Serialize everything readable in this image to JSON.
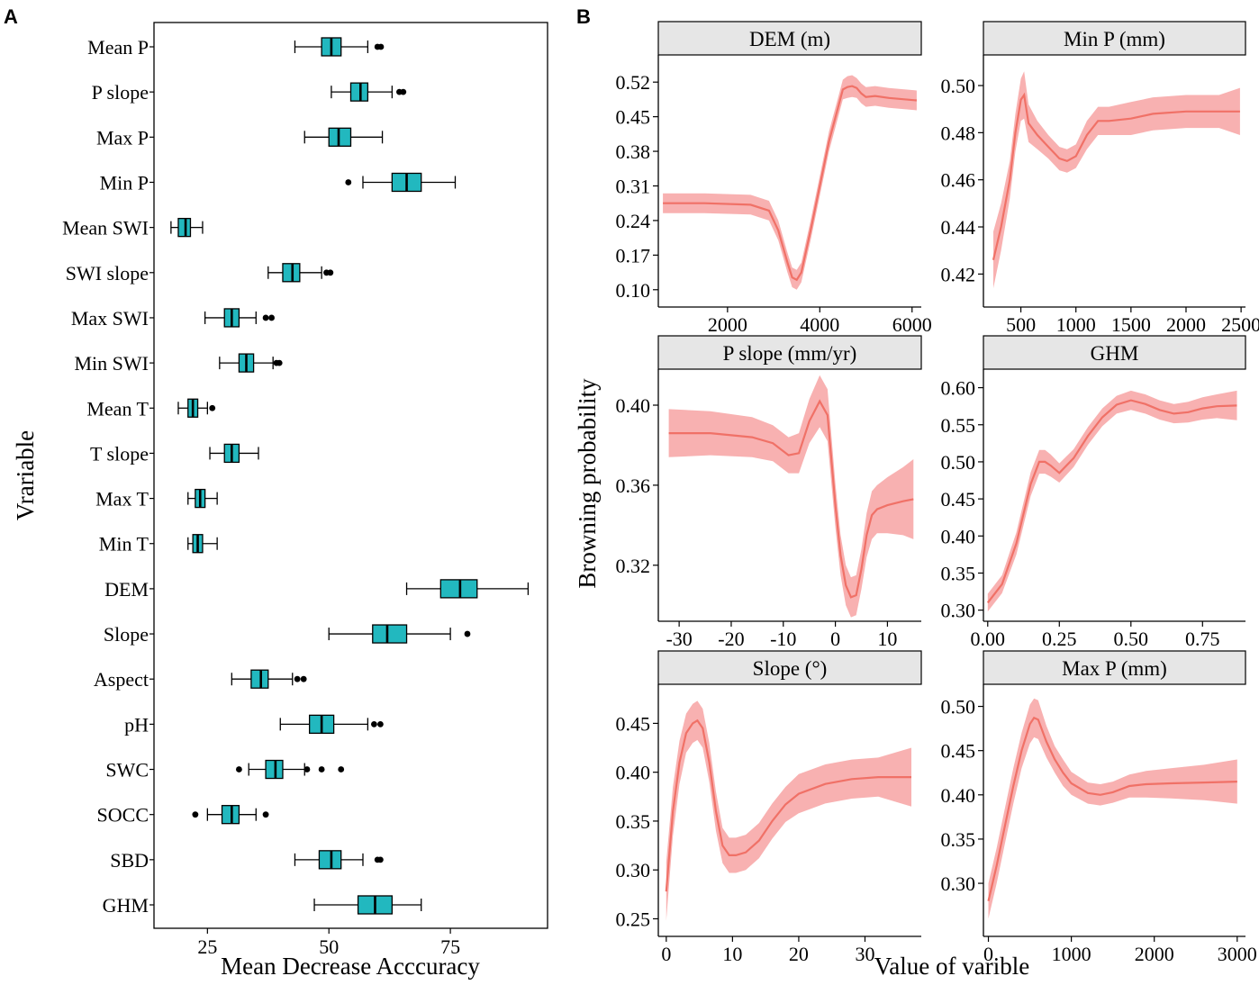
{
  "panel_a": {
    "label": "A",
    "chart_data": {
      "type": "boxplot",
      "orientation": "horizontal",
      "xlabel": "Mean Decrease Acccuracy",
      "ylabel": "Vrariable",
      "xlim": [
        14,
        95
      ],
      "xticks": [
        25,
        50,
        75
      ],
      "box_color": "#22b8bf",
      "variables": [
        {
          "name": "Mean P",
          "whisker_low": 43,
          "q1": 48.5,
          "median": 50.5,
          "q3": 52.5,
          "whisker_high": 58,
          "outliers": [
            60,
            60.7
          ]
        },
        {
          "name": "P slope",
          "whisker_low": 50.5,
          "q1": 54.5,
          "median": 56.5,
          "q3": 58,
          "whisker_high": 63,
          "outliers": [
            64.5,
            65.3
          ]
        },
        {
          "name": "Max P",
          "whisker_low": 45,
          "q1": 50,
          "median": 52,
          "q3": 54.5,
          "whisker_high": 61,
          "outliers": []
        },
        {
          "name": "Min P",
          "whisker_low": 57,
          "q1": 63,
          "median": 66,
          "q3": 69,
          "whisker_high": 76,
          "outliers": [
            54
          ]
        },
        {
          "name": "Mean SWI",
          "whisker_low": 17.5,
          "q1": 19,
          "median": 20.5,
          "q3": 21.5,
          "whisker_high": 24,
          "outliers": []
        },
        {
          "name": "SWI slope",
          "whisker_low": 37.5,
          "q1": 40.5,
          "median": 42.5,
          "q3": 44,
          "whisker_high": 48.5,
          "outliers": [
            49.5,
            50.3
          ]
        },
        {
          "name": "Max SWI",
          "whisker_low": 24.5,
          "q1": 28.5,
          "median": 30,
          "q3": 31.5,
          "whisker_high": 35,
          "outliers": [
            37,
            38.2
          ]
        },
        {
          "name": "Min SWI",
          "whisker_low": 27.5,
          "q1": 31.5,
          "median": 33,
          "q3": 34.5,
          "whisker_high": 38.5,
          "outliers": [
            39.2,
            39.8
          ]
        },
        {
          "name": "Mean T",
          "whisker_low": 19,
          "q1": 21,
          "median": 22,
          "q3": 23,
          "whisker_high": 25,
          "outliers": [
            26
          ]
        },
        {
          "name": "T slope",
          "whisker_low": 25.5,
          "q1": 28.5,
          "median": 30,
          "q3": 31.5,
          "whisker_high": 35.5,
          "outliers": []
        },
        {
          "name": "Max T",
          "whisker_low": 21,
          "q1": 22.5,
          "median": 23.5,
          "q3": 24.5,
          "whisker_high": 27,
          "outliers": []
        },
        {
          "name": "Min T",
          "whisker_low": 21,
          "q1": 22,
          "median": 23,
          "q3": 24,
          "whisker_high": 27,
          "outliers": []
        },
        {
          "name": "DEM",
          "whisker_low": 66,
          "q1": 73,
          "median": 77,
          "q3": 80.5,
          "whisker_high": 91,
          "outliers": []
        },
        {
          "name": "Slope",
          "whisker_low": 50,
          "q1": 59,
          "median": 62,
          "q3": 66,
          "whisker_high": 75,
          "outliers": [
            78.5
          ]
        },
        {
          "name": "Aspect",
          "whisker_low": 30,
          "q1": 34,
          "median": 36,
          "q3": 37.5,
          "whisker_high": 42.5,
          "outliers": [
            43.5,
            44.8
          ]
        },
        {
          "name": "pH",
          "whisker_low": 40,
          "q1": 46,
          "median": 48.5,
          "q3": 51,
          "whisker_high": 58,
          "outliers": [
            59.3,
            60.6
          ]
        },
        {
          "name": "SWC",
          "whisker_low": 33.5,
          "q1": 37,
          "median": 39,
          "q3": 40.5,
          "whisker_high": 45,
          "outliers": [
            31.5,
            45.5,
            48.5,
            52.5
          ]
        },
        {
          "name": "SOCC",
          "whisker_low": 25,
          "q1": 28,
          "median": 30,
          "q3": 31.5,
          "whisker_high": 35,
          "outliers": [
            22.5,
            37
          ]
        },
        {
          "name": "SBD",
          "whisker_low": 43,
          "q1": 48,
          "median": 50.5,
          "q3": 52.5,
          "whisker_high": 57,
          "outliers": [
            60,
            60.6
          ]
        },
        {
          "name": "GHM",
          "whisker_low": 47,
          "q1": 56,
          "median": 59.5,
          "q3": 63,
          "whisker_high": 69,
          "outliers": []
        }
      ]
    }
  },
  "panel_b": {
    "label": "B",
    "ylabel": "Browning probability",
    "xlabel": "Value of varible",
    "line_color": "#f07167",
    "band_color": "#f7a9a8",
    "strip_color": "#e6e6e6",
    "chart_data": [
      {
        "title": "DEM (m)",
        "type": "line",
        "xlim": [
          500,
          6200
        ],
        "ylim": [
          0.065,
          0.575
        ],
        "xticks": [
          2000,
          4000,
          6000
        ],
        "yticks": [
          0.1,
          0.17,
          0.24,
          0.31,
          0.38,
          0.45,
          0.52
        ],
        "ytick_labels": [
          "0.10",
          "0.17",
          "0.24",
          "0.31",
          "0.38",
          "0.45",
          "0.52"
        ],
        "xtick_labels": [
          "2000",
          "4000",
          "6000"
        ],
        "x": [
          600,
          1500,
          2500,
          2900,
          3100,
          3300,
          3400,
          3500,
          3600,
          3800,
          4000,
          4200,
          4400,
          4500,
          4600,
          4700,
          4800,
          4900,
          5000,
          5200,
          5500,
          6100
        ],
        "y": [
          0.275,
          0.275,
          0.272,
          0.26,
          0.22,
          0.155,
          0.125,
          0.12,
          0.135,
          0.22,
          0.31,
          0.4,
          0.47,
          0.505,
          0.51,
          0.512,
          0.508,
          0.497,
          0.49,
          0.492,
          0.488,
          0.483
        ],
        "band": [
          0.02,
          0.02,
          0.02,
          0.02,
          0.02,
          0.02,
          0.02,
          0.02,
          0.02,
          0.02,
          0.02,
          0.02,
          0.02,
          0.02,
          0.022,
          0.022,
          0.02,
          0.02,
          0.02,
          0.02,
          0.02,
          0.02
        ]
      },
      {
        "title": "Min P (mm)",
        "type": "line",
        "xlim": [
          160,
          2540
        ],
        "ylim": [
          0.406,
          0.513
        ],
        "xticks": [
          500,
          1000,
          1500,
          2000,
          2500
        ],
        "yticks": [
          0.42,
          0.44,
          0.46,
          0.48,
          0.5
        ],
        "ytick_labels": [
          "0.42",
          "0.44",
          "0.46",
          "0.48",
          "0.50"
        ],
        "xtick_labels": [
          "500",
          "1000",
          "1500",
          "2000",
          "2500"
        ],
        "x": [
          250,
          320,
          400,
          450,
          500,
          530,
          570,
          650,
          750,
          850,
          920,
          1000,
          1100,
          1200,
          1300,
          1500,
          1700,
          2000,
          2300,
          2490
        ],
        "y": [
          0.426,
          0.44,
          0.46,
          0.48,
          0.494,
          0.496,
          0.484,
          0.479,
          0.474,
          0.469,
          0.468,
          0.47,
          0.479,
          0.485,
          0.485,
          0.486,
          0.488,
          0.489,
          0.489,
          0.489
        ],
        "band": [
          0.012,
          0.01,
          0.008,
          0.008,
          0.009,
          0.01,
          0.008,
          0.006,
          0.005,
          0.005,
          0.005,
          0.005,
          0.006,
          0.006,
          0.006,
          0.007,
          0.007,
          0.007,
          0.007,
          0.01
        ]
      },
      {
        "title": "P slope (mm/yr)",
        "type": "line",
        "xlim": [
          -34,
          16.5
        ],
        "ylim": [
          0.292,
          0.418
        ],
        "xticks": [
          -30,
          -20,
          -10,
          0,
          10
        ],
        "yticks": [
          0.32,
          0.36,
          0.4
        ],
        "ytick_labels": [
          "0.32",
          "0.36",
          "0.40"
        ],
        "xtick_labels": [
          "-30",
          "-20",
          "-10",
          "0",
          "10"
        ],
        "x": [
          -32,
          -24,
          -16,
          -12,
          -9,
          -7,
          -5,
          -3,
          -1.5,
          0,
          1,
          2,
          3,
          4,
          5,
          6,
          7,
          8,
          10,
          13,
          15
        ],
        "y": [
          0.386,
          0.386,
          0.384,
          0.381,
          0.375,
          0.376,
          0.392,
          0.402,
          0.395,
          0.35,
          0.325,
          0.31,
          0.304,
          0.305,
          0.318,
          0.335,
          0.345,
          0.348,
          0.35,
          0.352,
          0.353
        ],
        "band": [
          0.012,
          0.011,
          0.01,
          0.009,
          0.009,
          0.01,
          0.011,
          0.013,
          0.013,
          0.011,
          0.01,
          0.01,
          0.01,
          0.01,
          0.01,
          0.011,
          0.012,
          0.012,
          0.014,
          0.017,
          0.02
        ]
      },
      {
        "title": "GHM",
        "type": "line",
        "xlim": [
          -0.015,
          0.9
        ],
        "ylim": [
          0.285,
          0.625
        ],
        "xticks": [
          0.0,
          0.25,
          0.5,
          0.75
        ],
        "yticks": [
          0.3,
          0.35,
          0.4,
          0.45,
          0.5,
          0.55,
          0.6
        ],
        "ytick_labels": [
          "0.30",
          "0.35",
          "0.40",
          "0.45",
          "0.50",
          "0.55",
          "0.60"
        ],
        "xtick_labels": [
          "0.00",
          "0.25",
          "0.50",
          "0.75"
        ],
        "x": [
          0.0,
          0.05,
          0.1,
          0.15,
          0.18,
          0.2,
          0.22,
          0.25,
          0.3,
          0.35,
          0.4,
          0.45,
          0.5,
          0.55,
          0.6,
          0.65,
          0.7,
          0.75,
          0.8,
          0.87
        ],
        "y": [
          0.31,
          0.335,
          0.39,
          0.47,
          0.5,
          0.5,
          0.495,
          0.485,
          0.505,
          0.535,
          0.56,
          0.577,
          0.583,
          0.578,
          0.57,
          0.565,
          0.567,
          0.572,
          0.575,
          0.576
        ],
        "band": [
          0.012,
          0.012,
          0.015,
          0.016,
          0.016,
          0.016,
          0.015,
          0.013,
          0.012,
          0.012,
          0.012,
          0.012,
          0.013,
          0.013,
          0.013,
          0.013,
          0.014,
          0.015,
          0.016,
          0.02
        ]
      },
      {
        "title": "Slope (°)",
        "type": "line",
        "xlim": [
          -1.2,
          38.5
        ],
        "ylim": [
          0.232,
          0.49
        ],
        "xticks": [
          0,
          10,
          20,
          30
        ],
        "yticks": [
          0.25,
          0.3,
          0.35,
          0.4,
          0.45
        ],
        "ytick_labels": [
          "0.25",
          "0.30",
          "0.35",
          "0.40",
          "0.45"
        ],
        "xtick_labels": [
          "0",
          "10",
          "20",
          "30"
        ],
        "x": [
          0,
          1,
          2,
          3,
          4,
          4.7,
          5.5,
          6.5,
          7.5,
          8.5,
          9.5,
          10.5,
          12,
          14,
          16,
          18,
          20,
          24,
          28,
          32,
          37
        ],
        "y": [
          0.278,
          0.36,
          0.41,
          0.44,
          0.45,
          0.453,
          0.445,
          0.41,
          0.36,
          0.325,
          0.315,
          0.315,
          0.318,
          0.33,
          0.35,
          0.367,
          0.378,
          0.388,
          0.393,
          0.395,
          0.395
        ],
        "band": [
          0.03,
          0.025,
          0.022,
          0.02,
          0.02,
          0.02,
          0.02,
          0.02,
          0.02,
          0.018,
          0.018,
          0.018,
          0.018,
          0.018,
          0.018,
          0.018,
          0.02,
          0.02,
          0.02,
          0.02,
          0.03
        ]
      },
      {
        "title": "Max P (mm)",
        "type": "line",
        "xlim": [
          -60,
          3100
        ],
        "ylim": [
          0.24,
          0.525
        ],
        "xticks": [
          0,
          1000,
          2000,
          3000
        ],
        "yticks": [
          0.3,
          0.35,
          0.4,
          0.45,
          0.5
        ],
        "ytick_labels": [
          "0.30",
          "0.35",
          "0.40",
          "0.45",
          "0.50"
        ],
        "xtick_labels": [
          "0",
          "1000",
          "2000",
          "3000"
        ],
        "x": [
          0,
          100,
          200,
          300,
          400,
          500,
          550,
          600,
          700,
          800,
          900,
          1000,
          1200,
          1350,
          1500,
          1700,
          1900,
          2200,
          2600,
          3000
        ],
        "y": [
          0.28,
          0.32,
          0.365,
          0.41,
          0.45,
          0.48,
          0.487,
          0.485,
          0.46,
          0.44,
          0.425,
          0.413,
          0.402,
          0.4,
          0.403,
          0.41,
          0.412,
          0.413,
          0.414,
          0.415
        ],
        "band": [
          0.02,
          0.02,
          0.02,
          0.02,
          0.02,
          0.022,
          0.022,
          0.022,
          0.018,
          0.015,
          0.015,
          0.013,
          0.012,
          0.012,
          0.012,
          0.013,
          0.015,
          0.017,
          0.02,
          0.025
        ]
      }
    ]
  }
}
